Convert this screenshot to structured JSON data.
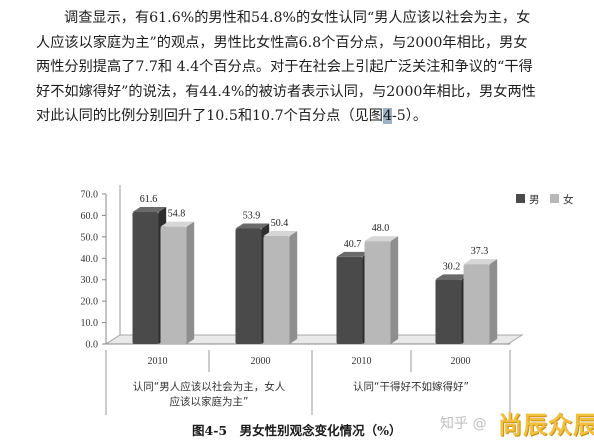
{
  "paragraph": {
    "line1": "调查显示，有61.6%的男性和54.8%的女性认同“男人应该以社会为主，女",
    "line2": "人应该以家庭为主”的观点，男性比女性高6.8个百分点，与2000年相比，男女",
    "line3": "两性分别提高了7.7和 4.4个百分点。对于在社会上引起广泛关注和争议的“干得",
    "line4": "好不如嫁得好”的说法，有44.4%的被访者表示认同，与2000年相比，男女两性",
    "line5_before": "对此认同的比例分别回升了10.5和10.7个百分点（见图",
    "line5_highlight": "4",
    "line5_after": "-5）。"
  },
  "chart_data": {
    "type": "bar",
    "title": "图4-5　男女性别观念变化情况（%）",
    "ylim": [
      0,
      70
    ],
    "yticks": [
      "0.0",
      "10.0",
      "20.0",
      "30.0",
      "40.0",
      "50.0",
      "60.0",
      "70.0"
    ],
    "categories": [
      "2010",
      "2000",
      "2010",
      "2000"
    ],
    "groups": [
      {
        "label_line1": "认同“男人应该以社会为主，女人",
        "label_line2": "应该以家庭为主”"
      },
      {
        "label_line1": "认同“干得好不如嫁得好”",
        "label_line2": ""
      }
    ],
    "series": [
      {
        "name": "男",
        "values": [
          61.6,
          53.9,
          40.7,
          30.2
        ],
        "color": "#4a4a4a"
      },
      {
        "name": "女",
        "values": [
          54.8,
          50.4,
          48.0,
          37.3
        ],
        "color": "#b8b8b8"
      }
    ],
    "value_labels": [
      [
        "61.6",
        "53.9",
        "40.7",
        "30.2"
      ],
      [
        "54.8",
        "50.4",
        "48.0",
        "37.3"
      ]
    ],
    "legend_position": "top-right",
    "grid": false
  },
  "watermark": {
    "site": "知乎 @",
    "brand": "尚辰众辰"
  }
}
